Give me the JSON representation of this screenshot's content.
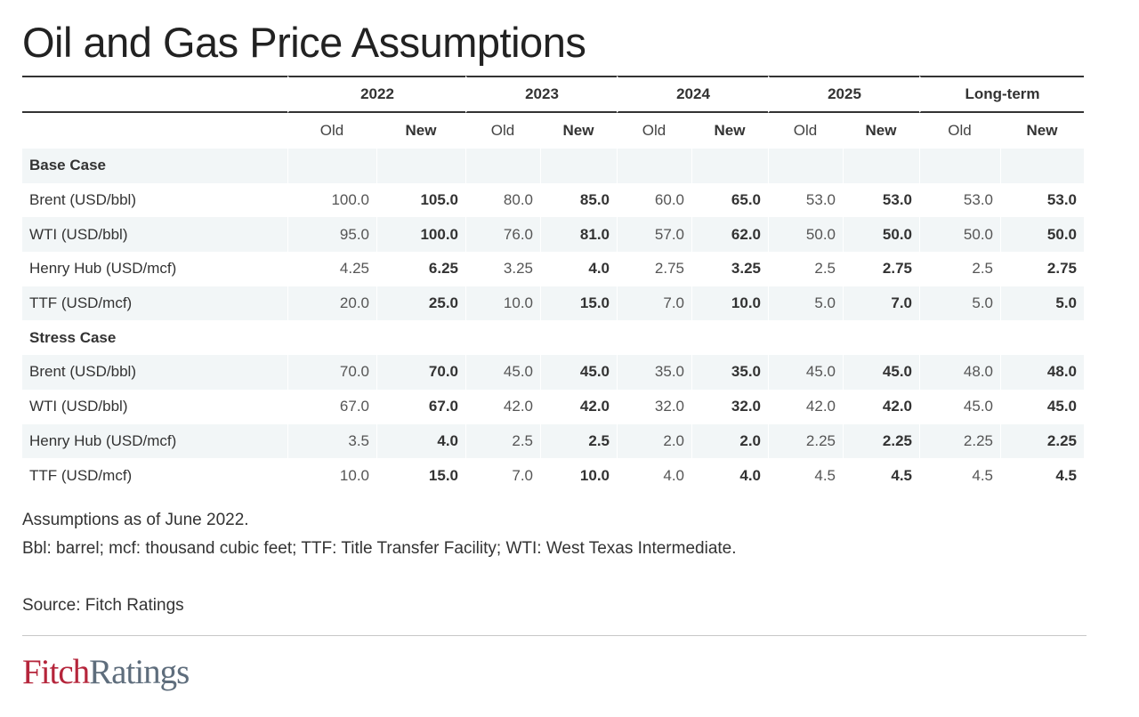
{
  "title": "Oil and Gas Price Assumptions",
  "table": {
    "years": [
      "2022",
      "2023",
      "2024",
      "2025",
      "Long-term"
    ],
    "old_label": "Old",
    "new_label": "New",
    "sections": [
      {
        "name": "Base Case",
        "rows": [
          {
            "label": "Brent (USD/bbl)",
            "values": [
              "100.0",
              "105.0",
              "80.0",
              "85.0",
              "60.0",
              "65.0",
              "53.0",
              "53.0",
              "53.0",
              "53.0"
            ]
          },
          {
            "label": "WTI (USD/bbl)",
            "values": [
              "95.0",
              "100.0",
              "76.0",
              "81.0",
              "57.0",
              "62.0",
              "50.0",
              "50.0",
              "50.0",
              "50.0"
            ]
          },
          {
            "label": "Henry Hub (USD/mcf)",
            "values": [
              "4.25",
              "6.25",
              "3.25",
              "4.0",
              "2.75",
              "3.25",
              "2.5",
              "2.75",
              "2.5",
              "2.75"
            ]
          },
          {
            "label": "TTF (USD/mcf)",
            "values": [
              "20.0",
              "25.0",
              "10.0",
              "15.0",
              "7.0",
              "10.0",
              "5.0",
              "7.0",
              "5.0",
              "5.0"
            ]
          }
        ]
      },
      {
        "name": "Stress Case",
        "rows": [
          {
            "label": "Brent (USD/bbl)",
            "values": [
              "70.0",
              "70.0",
              "45.0",
              "45.0",
              "35.0",
              "35.0",
              "45.0",
              "45.0",
              "48.0",
              "48.0"
            ]
          },
          {
            "label": "WTI (USD/bbl)",
            "values": [
              "67.0",
              "67.0",
              "42.0",
              "42.0",
              "32.0",
              "32.0",
              "42.0",
              "42.0",
              "45.0",
              "45.0"
            ]
          },
          {
            "label": "Henry Hub (USD/mcf)",
            "values": [
              "3.5",
              "4.0",
              "2.5",
              "2.5",
              "2.0",
              "2.0",
              "2.25",
              "2.25",
              "2.25",
              "2.25"
            ]
          },
          {
            "label": "TTF (USD/mcf)",
            "values": [
              "10.0",
              "15.0",
              "7.0",
              "10.0",
              "4.0",
              "4.0",
              "4.5",
              "4.5",
              "4.5",
              "4.5"
            ]
          }
        ]
      }
    ]
  },
  "notes": {
    "as_of": "Assumptions as of June 2022.",
    "glossary": "Bbl: barrel; mcf: thousand cubic feet; TTF: Title Transfer Facility; WTI: West Texas Intermediate.",
    "source": "Source: Fitch Ratings"
  },
  "logo": {
    "part1": "Fitch",
    "part2": "Ratings",
    "color1": "#b5253b",
    "color2": "#5e6d7c"
  },
  "colors": {
    "row_shade": "#f2f6f7",
    "rule": "#333333"
  }
}
